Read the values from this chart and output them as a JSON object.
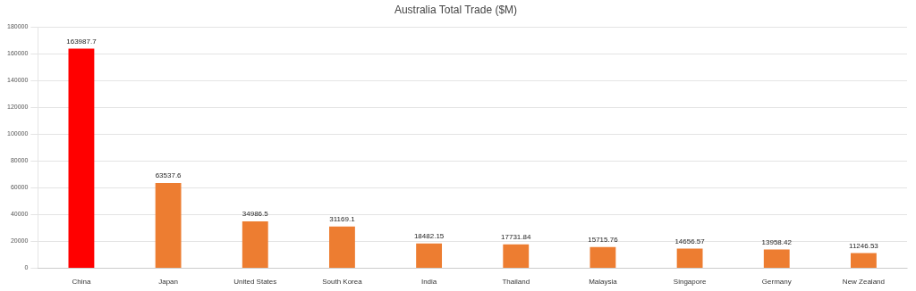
{
  "chart_data": {
    "type": "bar",
    "title": "Australia Total Trade ($M)",
    "categories": [
      "China",
      "Japan",
      "United States",
      "South Korea",
      "India",
      "Thailand",
      "Malaysia",
      "Singapore",
      "Germany",
      "New Zealand"
    ],
    "values": [
      163987.7,
      63537.6,
      34986.5,
      31169.1,
      18482.15,
      17731.84,
      15715.76,
      14656.57,
      13958.42,
      11246.53
    ],
    "colors": [
      "#ff0000",
      "#ed7d31",
      "#ed7d31",
      "#ed7d31",
      "#ed7d31",
      "#ed7d31",
      "#ed7d31",
      "#ed7d31",
      "#ed7d31",
      "#ed7d31"
    ],
    "ylim": [
      0,
      180000
    ],
    "yticks": [
      0,
      20000,
      40000,
      60000,
      80000,
      100000,
      120000,
      140000,
      160000,
      180000
    ],
    "grid": "y",
    "data_labels": true
  }
}
